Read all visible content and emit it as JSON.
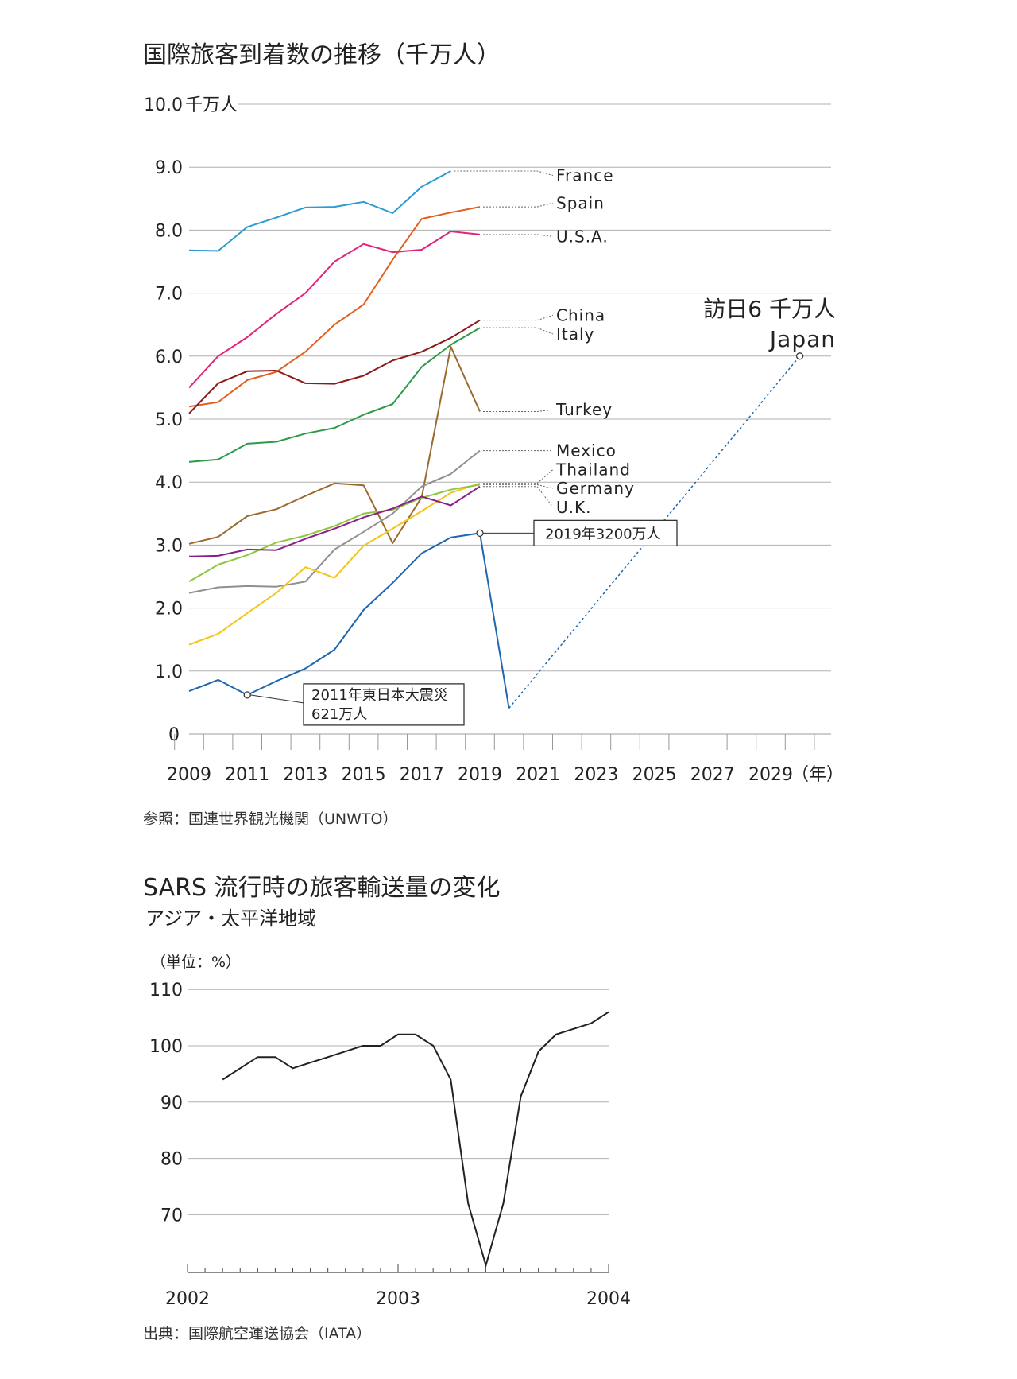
{
  "chart1": {
    "title": "国際旅客到着数の推移（千万人）",
    "source": "参照：国連世界観光機関（UNWTO）"
  },
  "chart2": {
    "title": "SARS 流行時の旅客輸送量の変化",
    "subtitle": "アジア・太平洋地域",
    "source": "出典：国際航空運送協会（IATA）"
  },
  "chart_data": [
    {
      "type": "line",
      "title": "国際旅客到着数の推移（千万人）",
      "unit_label": "千万人",
      "xunit_label": "（年）",
      "ylim": [
        0,
        10
      ],
      "xlim": [
        2008.5,
        2030.5
      ],
      "yticks": [
        0,
        1,
        2,
        3,
        4,
        5,
        6,
        7,
        8,
        9,
        10
      ],
      "ytick_labels": [
        "0",
        "1.0",
        "2.0",
        "3.0",
        "4.0",
        "5.0",
        "6.0",
        "7.0",
        "8.0",
        "9.0",
        "10.0"
      ],
      "xticks": [
        2009,
        2011,
        2013,
        2015,
        2017,
        2019,
        2021,
        2023,
        2025,
        2027,
        2029
      ],
      "grid": true,
      "series": [
        {
          "name": "France",
          "color": "#2b9bd4",
          "label_y": 8.92,
          "x": [
            2009,
            2010,
            2011,
            2012,
            2013,
            2014,
            2015,
            2016,
            2017,
            2018
          ],
          "values": [
            7.68,
            7.67,
            8.05,
            8.2,
            8.36,
            8.37,
            8.45,
            8.27,
            8.69,
            8.94
          ]
        },
        {
          "name": "Spain",
          "color": "#e0611f",
          "label_y": 8.38,
          "x": [
            2009,
            2010,
            2011,
            2012,
            2013,
            2014,
            2015,
            2016,
            2017,
            2018,
            2019
          ],
          "values": [
            5.2,
            5.27,
            5.62,
            5.75,
            6.07,
            6.5,
            6.82,
            7.53,
            8.18,
            8.28,
            8.37
          ]
        },
        {
          "name": "U.S.A.",
          "color": "#e0247a",
          "label_y": 7.95,
          "x": [
            2009,
            2010,
            2011,
            2012,
            2013,
            2014,
            2015,
            2016,
            2017,
            2018,
            2019
          ],
          "values": [
            5.5,
            6.0,
            6.3,
            6.67,
            7.0,
            7.5,
            7.78,
            7.65,
            7.69,
            7.98,
            7.93
          ]
        },
        {
          "name": "China",
          "color": "#8c1a1a",
          "label_y": 6.6,
          "x": [
            2009,
            2010,
            2011,
            2012,
            2013,
            2014,
            2015,
            2016,
            2017,
            2018,
            2019
          ],
          "values": [
            5.09,
            5.57,
            5.76,
            5.77,
            5.57,
            5.56,
            5.69,
            5.93,
            6.07,
            6.29,
            6.57
          ]
        },
        {
          "name": "Italy",
          "color": "#2e9a48",
          "label_y": 6.4,
          "x": [
            2009,
            2010,
            2011,
            2012,
            2013,
            2014,
            2015,
            2016,
            2017,
            2018,
            2019
          ],
          "values": [
            4.32,
            4.36,
            4.61,
            4.64,
            4.77,
            4.86,
            5.07,
            5.24,
            5.83,
            6.18,
            6.45
          ]
        },
        {
          "name": "Turkey",
          "color": "#9b6a2e",
          "label_y": 5.14,
          "x": [
            2009,
            2010,
            2011,
            2012,
            2013,
            2014,
            2015,
            2016,
            2017,
            2018,
            2019
          ],
          "values": [
            3.02,
            3.13,
            3.46,
            3.57,
            3.78,
            3.98,
            3.95,
            3.03,
            3.76,
            6.15,
            5.12
          ]
        },
        {
          "name": "Mexico",
          "color": "#909090",
          "label_y": 4.5,
          "x": [
            2009,
            2010,
            2011,
            2012,
            2013,
            2014,
            2015,
            2016,
            2017,
            2018,
            2019
          ],
          "values": [
            2.24,
            2.33,
            2.35,
            2.34,
            2.42,
            2.93,
            3.21,
            3.5,
            3.93,
            4.13,
            4.5
          ]
        },
        {
          "name": "Thailand",
          "color": "#f2c518",
          "label_y": 3.98,
          "x": [
            2009,
            2010,
            2011,
            2012,
            2013,
            2014,
            2015,
            2016,
            2017,
            2018,
            2019
          ],
          "values": [
            1.42,
            1.59,
            1.92,
            2.24,
            2.65,
            2.48,
            2.99,
            3.26,
            3.54,
            3.83,
            3.98
          ]
        },
        {
          "name": "Germany",
          "color": "#8ec63f",
          "label_y": 3.95,
          "x": [
            2009,
            2010,
            2011,
            2012,
            2013,
            2014,
            2015,
            2016,
            2017,
            2018,
            2019
          ],
          "values": [
            2.42,
            2.69,
            2.84,
            3.04,
            3.15,
            3.3,
            3.5,
            3.56,
            3.75,
            3.88,
            3.96
          ]
        },
        {
          "name": "U.K.",
          "color": "#8a1f8a",
          "label_y": 3.93,
          "x": [
            2009,
            2010,
            2011,
            2012,
            2013,
            2014,
            2015,
            2016,
            2017,
            2018,
            2019
          ],
          "values": [
            2.82,
            2.83,
            2.93,
            2.92,
            3.1,
            3.26,
            3.44,
            3.58,
            3.77,
            3.63,
            3.93
          ]
        },
        {
          "name": "Japan",
          "color": "#1d66b0",
          "x": [
            2009,
            2010,
            2011,
            2012,
            2013,
            2014,
            2015,
            2016,
            2017,
            2018,
            2019,
            2020
          ],
          "values": [
            0.68,
            0.86,
            0.62,
            0.84,
            1.04,
            1.34,
            1.97,
            2.4,
            2.87,
            3.12,
            3.19,
            0.41
          ]
        },
        {
          "name": "Japan target",
          "color": "#1d66b0",
          "dashed": true,
          "x": [
            2020,
            2030
          ],
          "values": [
            0.41,
            6.0
          ]
        }
      ],
      "label_order": [
        "France",
        "Spain",
        "U.S.A.",
        "China",
        "Italy",
        "Turkey",
        "Mexico",
        "Thailand",
        "Germany",
        "U.K."
      ],
      "label_positions_y": [
        8.87,
        8.43,
        7.9,
        6.65,
        6.35,
        5.15,
        4.5,
        4.2,
        3.9,
        3.6
      ],
      "annotations": [
        {
          "text": "2011年東日本大震災",
          "text2": "621万人",
          "x": 2011,
          "y": 0.62
        },
        {
          "text": "2019年3200万人",
          "x": 2019,
          "y": 3.19
        },
        {
          "text": "訪日6 千万人",
          "text2": "Japan",
          "x": 2030,
          "y": 6.0
        }
      ]
    },
    {
      "type": "line",
      "title": "SARS 流行時の旅客輸送量の変化",
      "subtitle": "アジア・太平洋地域",
      "unit_label": "（単位：%）",
      "ylim": [
        60,
        110
      ],
      "yticks": [
        70,
        80,
        90,
        100,
        110
      ],
      "xlim": [
        2002,
        2004
      ],
      "xticks": [
        2002,
        2003,
        2004
      ],
      "grid": true,
      "series": [
        {
          "name": "",
          "color": "#222222",
          "x": [
            2002.167,
            2002.333,
            2002.417,
            2002.5,
            2002.583,
            2002.667,
            2002.75,
            2002.833,
            2002.917,
            2003.0,
            2003.083,
            2003.167,
            2003.25,
            2003.333,
            2003.417,
            2003.5,
            2003.583,
            2003.667,
            2003.75,
            2003.833,
            2003.917,
            2004.0
          ],
          "values": [
            94,
            98,
            98,
            96,
            97,
            98,
            99,
            100,
            100,
            102,
            102,
            100,
            94,
            72,
            61,
            72,
            91,
            99,
            102,
            103,
            104,
            106
          ]
        }
      ]
    }
  ]
}
